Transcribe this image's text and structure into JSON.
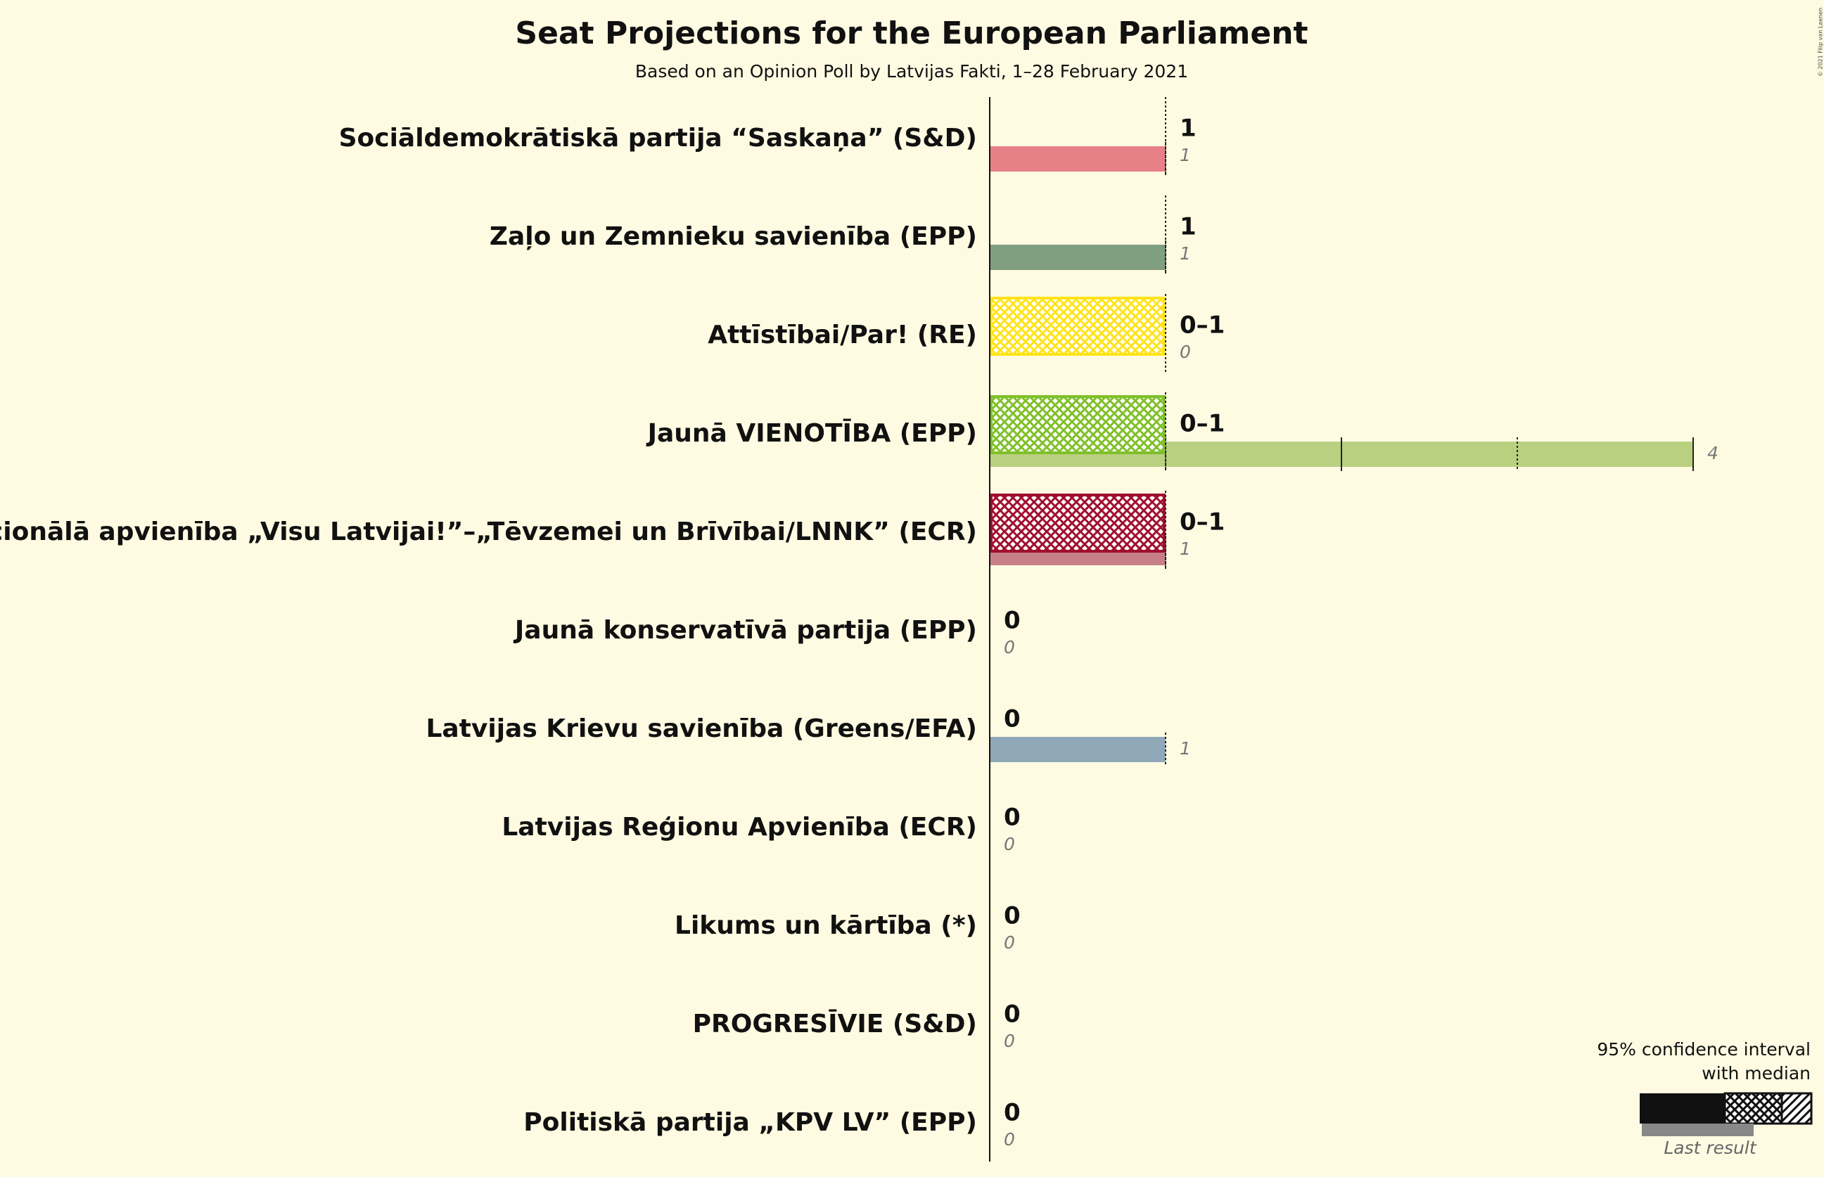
{
  "chart_data": {
    "type": "range-bar",
    "title": "Seat Projections for the European Parliament",
    "subtitle": "Based on an Opinion Poll by Latvijas Fakti, 1–28 February 2021",
    "copyright": "© 2021 Filip van Laenen",
    "categories": [
      "Sociāldemokrātiskā partija “Saskaņa” (S&D)",
      "Zaļo un Zemnieku savienība (EPP)",
      "Attīstībai/Par! (RE)",
      "Jaunā VIENOTĪBA (EPP)",
      "Nacionālā apvienība „Visu Latvijai!”–„Tēvzemei un Brīvībai/LNNK” (ECR)",
      "Jaunā konservatīvā partija (EPP)",
      "Latvijas Krievu savienība (Greens/EFA)",
      "Latvijas Reģionu Apvienība (ECR)",
      "Likums un kārtība (*)",
      "PROGRESĪVIE (S&D)",
      "Politiskā partija „KPV LV” (EPP)"
    ],
    "colors": [
      "#ff0026",
      "#006030",
      "#ffe41a",
      "#80c02a",
      "#a0102e",
      "#3060a0",
      "#5a7f9a",
      "#406080",
      "#804020",
      "#e0002a",
      "#8040a0"
    ],
    "last_colors": [
      "#e88088",
      "#7f9f80",
      "#ffe890",
      "#b8d080",
      "#c88088",
      "#a0b0d0",
      "#90a8b8",
      "#a0b0c0",
      "#c0a090",
      "#f08090",
      "#c0a0d0"
    ],
    "series": [
      {
        "name": "95% confidence interval with median",
        "low": [
          1,
          1,
          0,
          0,
          0,
          0,
          0,
          0,
          0,
          0,
          0
        ],
        "median": [
          1,
          1,
          0,
          0,
          0,
          0,
          0,
          0,
          0,
          0,
          0
        ],
        "high": [
          1,
          1,
          1,
          1,
          1,
          0,
          0,
          0,
          0,
          0,
          0
        ],
        "value_labels": [
          "1",
          "1",
          "0–1",
          "0–1",
          "0–1",
          "0",
          "0",
          "0",
          "0",
          "0",
          "0"
        ]
      },
      {
        "name": "Last result",
        "values": [
          1,
          1,
          0,
          4,
          1,
          0,
          1,
          0,
          0,
          0,
          0
        ]
      }
    ],
    "xlim": [
      0,
      4.8
    ]
  }
}
